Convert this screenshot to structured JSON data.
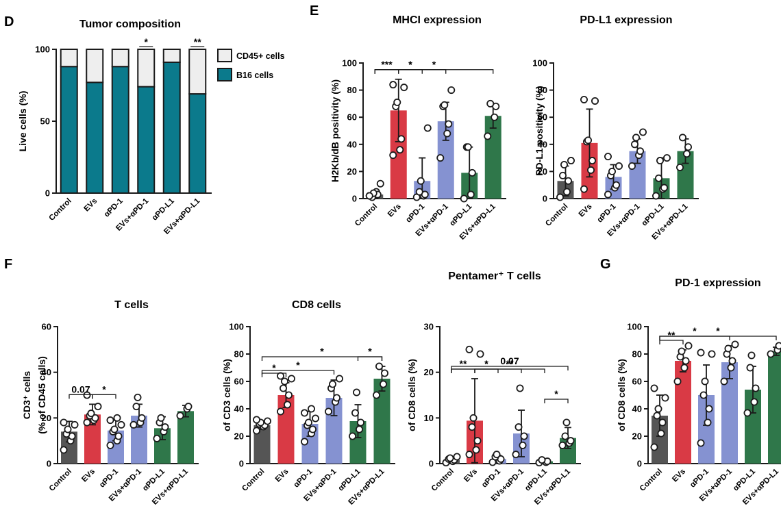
{
  "panel_letters": [
    "D",
    "E",
    "F",
    "G"
  ],
  "chart_data": [
    {
      "id": "tumor",
      "type": "bar",
      "stacked": true,
      "panel_letter": "D",
      "title": "Tumor composition",
      "ylabel": "Live cells (%)",
      "ylim": [
        0,
        100
      ],
      "yticks": [
        0,
        50,
        100
      ],
      "categories": [
        "Control",
        "EVs",
        "αPD-1",
        "EVs+αPD-1",
        "αPD-L1",
        "EVs+αPD-L1"
      ],
      "series": [
        {
          "name": "B16 cells",
          "color": "#0b7a8c",
          "values": [
            88,
            77,
            88,
            74,
            91,
            69
          ]
        },
        {
          "name": "CD45+ cells",
          "color": "#eeeeee",
          "values": [
            12,
            23,
            12,
            26,
            9,
            31
          ]
        }
      ],
      "legend_position": "top-right",
      "annotations": [
        {
          "bar": 3,
          "label": "*"
        },
        {
          "bar": 5,
          "label": "**"
        }
      ]
    },
    {
      "id": "mhci",
      "type": "bar",
      "panel_letter": "E",
      "title": "MHCI expression",
      "ylabel": "H2Kb/dB positivity (%)",
      "ylim": [
        0,
        100
      ],
      "yticks": [
        0,
        20,
        40,
        60,
        80,
        100
      ],
      "categories": [
        "Control",
        "EVs",
        "αPD-1",
        "EVs+αPD-1",
        "αPD-L1",
        "EVs+αPD-L1"
      ],
      "values": [
        3,
        65,
        13,
        57,
        19,
        61
      ],
      "errors": [
        3,
        23,
        17,
        14,
        19,
        9
      ],
      "points": [
        [
          2,
          5,
          3,
          1,
          4,
          11,
          2
        ],
        [
          32,
          36,
          44,
          68,
          71,
          82,
          84
        ],
        [
          1,
          2,
          3,
          5,
          13,
          52
        ],
        [
          30,
          48,
          55,
          68,
          69,
          80
        ],
        [
          0,
          3,
          19,
          38,
          38
        ],
        [
          46,
          60,
          68,
          70
        ]
      ],
      "comparisons": [
        {
          "from": 0,
          "to": 1,
          "label": "***"
        },
        {
          "from": 1,
          "to": 2,
          "label": "*"
        },
        {
          "from": 0,
          "to": 3,
          "label": "*"
        },
        {
          "from": 0,
          "to": 5,
          "label": "*"
        }
      ]
    },
    {
      "id": "pdl1",
      "type": "bar",
      "title": "PD-L1 expression",
      "ylabel": "PD-L1 positivity (%)",
      "ylim": [
        0,
        100
      ],
      "yticks": [
        0,
        20,
        40,
        60,
        80,
        100
      ],
      "categories": [
        "Control",
        "EVs",
        "αPD-1",
        "EVs+αPD-1",
        "αPD-L1",
        "EVs+αPD-L1"
      ],
      "values": [
        13,
        41,
        16,
        35,
        15,
        35
      ],
      "errors": [
        11,
        25,
        9,
        9,
        15,
        9
      ],
      "points": [
        [
          1,
          5,
          13,
          17,
          25,
          28
        ],
        [
          7,
          21,
          28,
          42,
          43,
          72,
          73
        ],
        [
          3,
          8,
          10,
          17,
          20,
          24,
          31
        ],
        [
          24,
          32,
          35,
          40,
          45,
          49
        ],
        [
          2,
          7,
          8,
          15,
          28,
          30
        ],
        [
          23,
          33,
          38,
          45
        ]
      ],
      "comparisons": []
    },
    {
      "id": "tcells",
      "type": "bar",
      "panel_letter": "F",
      "title": "T cells",
      "ylabel": "CD3⁺ cells",
      "ylabel2": "(% of CD45 cells)",
      "ylim": [
        0,
        60
      ],
      "yticks": [
        0,
        20,
        40,
        60
      ],
      "categories": [
        "Control",
        "EVs",
        "αPD-1",
        "EVs+αPD-1",
        "αPD-L1",
        "EVs+αPD-L1"
      ],
      "values": [
        14,
        21.5,
        14.5,
        21,
        15.5,
        23
      ],
      "errors": [
        4.5,
        4.5,
        4.5,
        5,
        5,
        2.5
      ],
      "points": [
        [
          6,
          10,
          12,
          13,
          15,
          17,
          18
        ],
        [
          18,
          19,
          20,
          21,
          22,
          25,
          30
        ],
        [
          8,
          10,
          12,
          14,
          15,
          17,
          19,
          20
        ],
        [
          17,
          18,
          20,
          25,
          29
        ],
        [
          11,
          14,
          16,
          18,
          20
        ],
        [
          21,
          24,
          25
        ]
      ],
      "comparisons": [
        {
          "from": 0,
          "to": 1,
          "label": "0.07"
        },
        {
          "from": 1,
          "to": 2,
          "label": "*"
        }
      ]
    },
    {
      "id": "cd8",
      "type": "bar",
      "title": "CD8 cells",
      "ylabel": "of CD3 cells (%)",
      "ylim": [
        0,
        100
      ],
      "yticks": [
        0,
        20,
        40,
        60,
        80,
        100
      ],
      "categories": [
        "Control",
        "EVs",
        "αPD-1",
        "EVs+αPD-1",
        "αPD-L1",
        "EVs+αPD-L1"
      ],
      "values": [
        28,
        50,
        29,
        48,
        31,
        62
      ],
      "errors": [
        3,
        9,
        9,
        13,
        12,
        9
      ],
      "points": [
        [
          24,
          27,
          28,
          29,
          30,
          31,
          32
        ],
        [
          38,
          43,
          50,
          55,
          60,
          62,
          64
        ],
        [
          16,
          22,
          25,
          28,
          30,
          33,
          37,
          40
        ],
        [
          38,
          45,
          48,
          55,
          58,
          62
        ],
        [
          20,
          25,
          30,
          37,
          52
        ],
        [
          50,
          58,
          66,
          71
        ]
      ],
      "comparisons": [
        {
          "from": 0,
          "to": 1,
          "label": "*"
        },
        {
          "from": 0,
          "to": 3,
          "label": "*"
        },
        {
          "from": 4,
          "to": 5,
          "label": "*"
        },
        {
          "from": 0,
          "to": 5,
          "label": "*"
        }
      ]
    },
    {
      "id": "pentamer",
      "type": "bar",
      "title": "Pentamer⁺ T cells",
      "ylabel": "of CD8 cells (%)",
      "ylim": [
        0,
        30
      ],
      "yticks": [
        0,
        10,
        20,
        30
      ],
      "categories": [
        "Control",
        "EVs",
        "αPD-1",
        "EVs+αPD-1",
        "αPD-L1",
        "EVs+αPD-L1"
      ],
      "values": [
        0.8,
        9.4,
        1.0,
        6.6,
        0.5,
        5.6
      ],
      "errors": [
        0.5,
        9.2,
        0.8,
        5.1,
        0.4,
        2.3
      ],
      "points": [
        [
          0.2,
          0.5,
          0.8,
          1.0,
          1.2,
          1.5
        ],
        [
          2,
          3,
          5,
          8,
          10,
          24,
          25
        ],
        [
          0.3,
          0.6,
          1.0,
          1.5,
          2.0
        ],
        [
          2,
          4,
          6,
          8,
          16.5
        ],
        [
          0.2,
          0.3,
          0.5,
          0.8
        ],
        [
          4,
          4.5,
          5,
          6,
          9
        ]
      ],
      "comparisons": [
        {
          "from": 0,
          "to": 1,
          "label": "**"
        },
        {
          "from": 1,
          "to": 2,
          "label": "*"
        },
        {
          "from": 1,
          "to": 4,
          "label": "**"
        },
        {
          "from": 0,
          "to": 3,
          "label": "*"
        },
        {
          "from": 0,
          "to": 5,
          "label": "0.07"
        },
        {
          "from": 4,
          "to": 5,
          "label": "*"
        }
      ]
    },
    {
      "id": "pd1",
      "type": "bar",
      "panel_letter": "G",
      "title": "PD-1 expression",
      "ylabel": "of CD8 cells (%)",
      "ylim": [
        0,
        100
      ],
      "yticks": [
        0,
        20,
        40,
        60,
        80,
        100
      ],
      "categories": [
        "Control",
        "EVs",
        "αPD-1",
        "EVs+αPD-1",
        "αPD-L1",
        "EVs+αPD-L1"
      ],
      "values": [
        35,
        75,
        50,
        74,
        54,
        82
      ],
      "errors": [
        15,
        8,
        22,
        12,
        17,
        3
      ],
      "points": [
        [
          12,
          22,
          30,
          35,
          40,
          48,
          55
        ],
        [
          60,
          70,
          75,
          78,
          82,
          86
        ],
        [
          15,
          30,
          40,
          50,
          60,
          80,
          81
        ],
        [
          60,
          70,
          75,
          80,
          84,
          87
        ],
        [
          37,
          45,
          55,
          70,
          79
        ],
        [
          80,
          83,
          86
        ]
      ],
      "comparisons": [
        {
          "from": 0,
          "to": 1,
          "label": "**"
        },
        {
          "from": 0,
          "to": 3,
          "label": "*"
        },
        {
          "from": 0,
          "to": 5,
          "label": "*"
        }
      ]
    }
  ],
  "colors": {
    "bars": [
      "#555555",
      "#d93a45",
      "#8592d1",
      "#8592d1",
      "#2f774a",
      "#2f774a"
    ],
    "axis": "#1a1a1a"
  }
}
